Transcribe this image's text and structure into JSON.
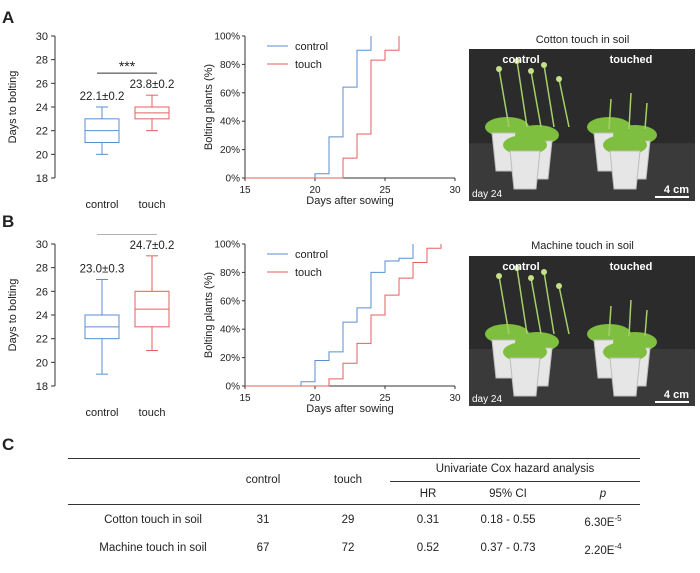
{
  "panels": {
    "a": "A",
    "b": "B",
    "c": "C"
  },
  "colors": {
    "control": "#5b8ed1",
    "touch": "#e26060",
    "photo_bg": "#2b2b2b",
    "plant": "#7fbf3f"
  },
  "panel_a": {
    "box": {
      "ylabel": "Days to bolting",
      "yticks": [
        "30",
        "28",
        "26",
        "24",
        "22",
        "20",
        "18"
      ],
      "ylim": [
        18,
        30
      ],
      "categories": [
        "control",
        "touch"
      ],
      "control": {
        "min": 20,
        "q1": 21,
        "median": 22,
        "q3": 23,
        "max": 24,
        "label": "22.1±0.2"
      },
      "touch": {
        "min": 22,
        "q1": 23,
        "median": 23.5,
        "q3": 24,
        "max": 25,
        "label": "23.8±0.2"
      },
      "significance": "***"
    },
    "curve": {
      "ylabel": "Bolting plants (%)",
      "xlabel": "Days after sowing",
      "yticks": [
        "100%",
        "80%",
        "60%",
        "40%",
        "20%",
        "0%"
      ],
      "xticks": [
        "15",
        "20",
        "25",
        "30"
      ],
      "legend": [
        "control",
        "touch"
      ],
      "control": {
        "x": [
          15,
          20,
          21,
          22,
          23,
          24
        ],
        "y": [
          0,
          3,
          29,
          64,
          90,
          100
        ]
      },
      "touch": {
        "x": [
          15,
          21,
          22,
          23,
          24,
          25,
          26
        ],
        "y": [
          0,
          0,
          14,
          31,
          83,
          90,
          100
        ]
      }
    },
    "photo": {
      "title": "Cotton touch in soil",
      "left_label": "control",
      "right_label": "touched",
      "day": "day 24",
      "scale": "4 cm"
    }
  },
  "panel_b": {
    "box": {
      "ylabel": "Days to bolting",
      "yticks": [
        "30",
        "28",
        "26",
        "24",
        "22",
        "20",
        "18"
      ],
      "ylim": [
        18,
        30
      ],
      "categories": [
        "control",
        "touch"
      ],
      "control": {
        "min": 19,
        "q1": 22,
        "median": 23,
        "q3": 24,
        "max": 27,
        "label": "23.0±0.3"
      },
      "touch": {
        "min": 21,
        "q1": 23,
        "median": 24.5,
        "q3": 26,
        "max": 29,
        "label": "24.7±0.2"
      },
      "significance": "***"
    },
    "curve": {
      "ylabel": "Bolting plants (%)",
      "xlabel": "Days after sowing",
      "yticks": [
        "100%",
        "80%",
        "60%",
        "40%",
        "20%",
        "0%"
      ],
      "xticks": [
        "15",
        "20",
        "25",
        "30"
      ],
      "legend": [
        "control",
        "touch"
      ],
      "control": {
        "x": [
          15,
          19,
          20,
          21,
          22,
          23,
          24,
          25,
          26,
          27
        ],
        "y": [
          0,
          3,
          18,
          24,
          45,
          55,
          80,
          88,
          90,
          100
        ]
      },
      "touch": {
        "x": [
          15,
          20,
          21,
          22,
          23,
          24,
          25,
          26,
          27,
          28,
          29
        ],
        "y": [
          0,
          0,
          5,
          16,
          30,
          50,
          64,
          76,
          87,
          97,
          100
        ]
      }
    },
    "photo": {
      "title": "Machine touch in soil",
      "left_label": "control",
      "right_label": "touched",
      "day": "day 24",
      "scale": "4 cm"
    }
  },
  "table": {
    "group_header": "Univariate Cox hazard analysis",
    "col_control": "control",
    "col_touch": "touch",
    "col_hr": "HR",
    "col_ci": "95% CI",
    "col_p": "p",
    "rows": [
      {
        "name": "Cotton touch in soil",
        "control": "31",
        "touch": "29",
        "hr": "0.31",
        "ci": "0.18 - 0.55",
        "p_base": "6.30E",
        "p_exp": "-5"
      },
      {
        "name": "Machine touch in soil",
        "control": "67",
        "touch": "72",
        "hr": "0.52",
        "ci": "0.37 - 0.73",
        "p_base": "2.20E",
        "p_exp": "-4"
      }
    ]
  }
}
